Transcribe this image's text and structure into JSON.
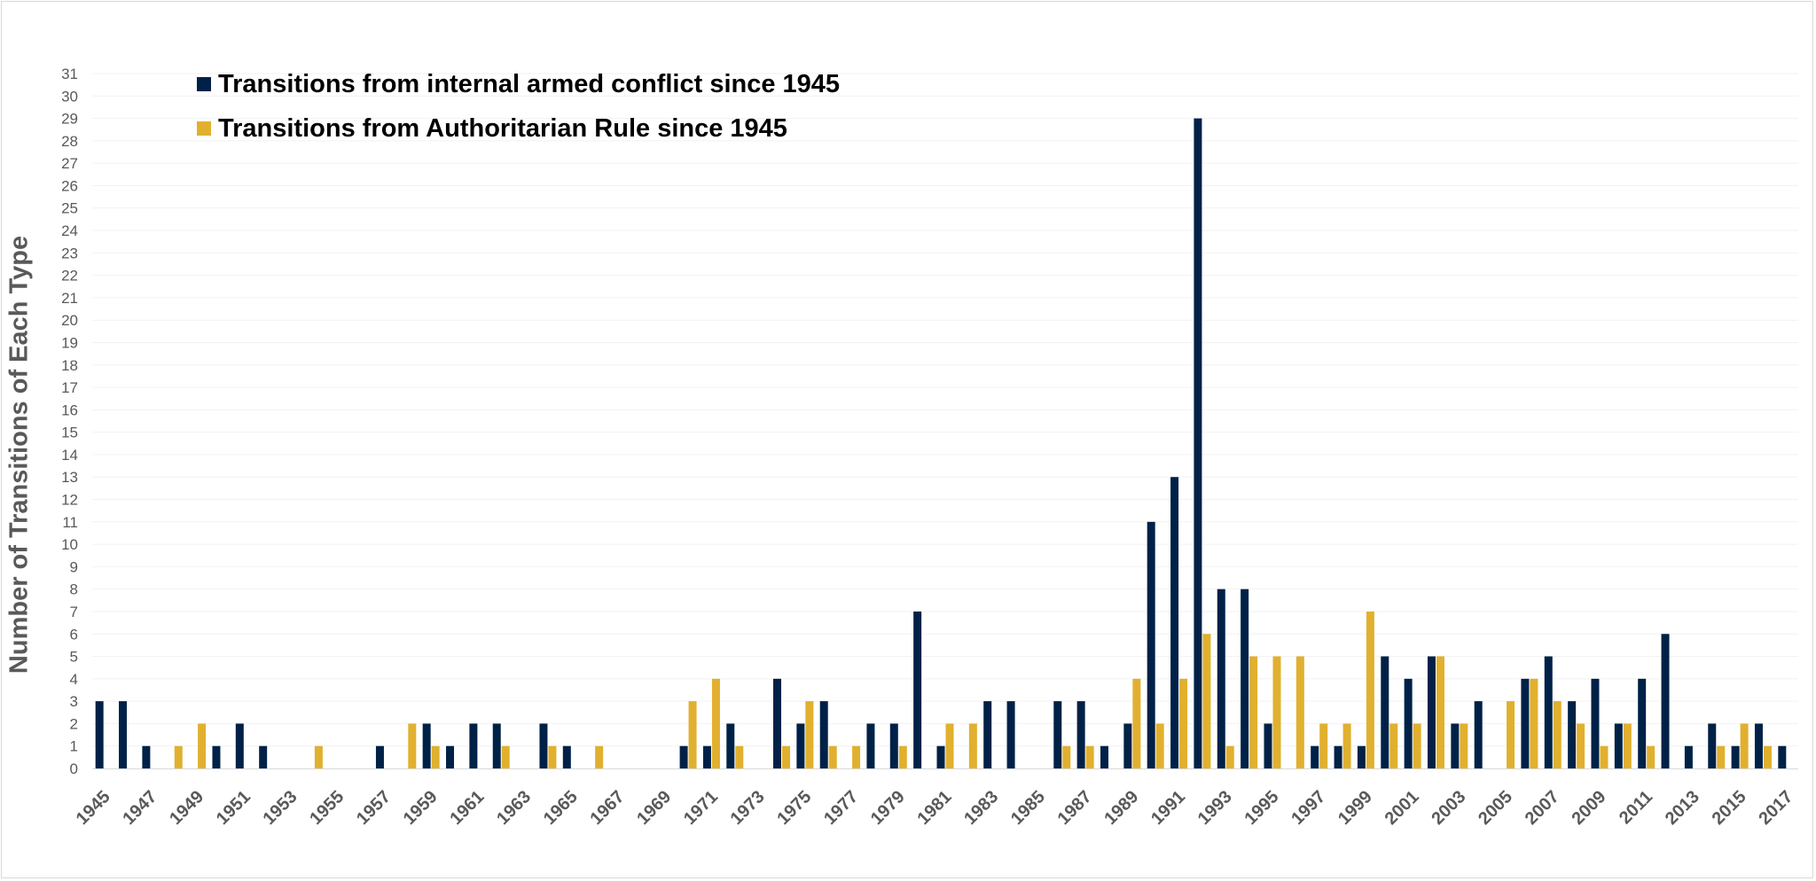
{
  "chart_data": {
    "type": "bar",
    "title": "",
    "xlabel": "",
    "ylabel": "Number of Transitions of Each Type",
    "ylim": [
      0,
      31
    ],
    "categories": [
      1945,
      1946,
      1947,
      1948,
      1949,
      1950,
      1951,
      1952,
      1953,
      1954,
      1955,
      1956,
      1957,
      1958,
      1959,
      1960,
      1961,
      1962,
      1963,
      1964,
      1965,
      1966,
      1967,
      1968,
      1969,
      1970,
      1971,
      1972,
      1973,
      1974,
      1975,
      1976,
      1977,
      1978,
      1979,
      1980,
      1981,
      1982,
      1983,
      1984,
      1985,
      1986,
      1987,
      1988,
      1989,
      1990,
      1991,
      1992,
      1993,
      1994,
      1995,
      1996,
      1997,
      1998,
      1999,
      2000,
      2001,
      2002,
      2003,
      2004,
      2005,
      2006,
      2007,
      2008,
      2009,
      2010,
      2011,
      2012,
      2013,
      2014,
      2015,
      2016,
      2017
    ],
    "x_tick_labels": [
      "1945",
      "1947",
      "1949",
      "1951",
      "1953",
      "1955",
      "1957",
      "1959",
      "1961",
      "1963",
      "1965",
      "1967",
      "1969",
      "1971",
      "1973",
      "1975",
      "1977",
      "1979",
      "1981",
      "1983",
      "1985",
      "1987",
      "1989",
      "1991",
      "1993",
      "1995",
      "1997",
      "1999",
      "2001",
      "2003",
      "2005",
      "2007",
      "2009",
      "2011",
      "2013",
      "2015",
      "2017"
    ],
    "y_ticks": [
      0,
      1,
      2,
      3,
      4,
      5,
      6,
      7,
      8,
      9,
      10,
      11,
      12,
      13,
      14,
      15,
      16,
      17,
      18,
      19,
      20,
      21,
      22,
      23,
      24,
      25,
      26,
      27,
      28,
      29,
      30,
      31
    ],
    "legend_position": "top-left",
    "series": [
      {
        "name": "Transitions from internal armed conflict since 1945",
        "color": "#002147",
        "values": [
          3,
          3,
          1,
          0,
          0,
          1,
          2,
          1,
          0,
          0,
          0,
          0,
          1,
          0,
          2,
          1,
          2,
          2,
          0,
          2,
          1,
          0,
          0,
          0,
          0,
          1,
          1,
          2,
          0,
          4,
          2,
          3,
          0,
          2,
          2,
          7,
          1,
          0,
          3,
          3,
          0,
          3,
          3,
          1,
          2,
          11,
          13,
          29,
          8,
          8,
          2,
          0,
          1,
          1,
          1,
          5,
          4,
          5,
          2,
          3,
          0,
          4,
          5,
          3,
          4,
          2,
          4,
          6,
          1,
          2,
          1,
          2,
          1
        ]
      },
      {
        "name": "Transitions from Authoritarian Rule since 1945",
        "color": "#E1B02E",
        "values": [
          0,
          0,
          0,
          1,
          2,
          0,
          0,
          0,
          0,
          1,
          0,
          0,
          0,
          2,
          1,
          0,
          0,
          1,
          0,
          1,
          0,
          1,
          0,
          0,
          0,
          3,
          4,
          1,
          0,
          1,
          3,
          1,
          1,
          0,
          1,
          0,
          2,
          2,
          0,
          0,
          0,
          1,
          1,
          0,
          4,
          2,
          4,
          6,
          1,
          5,
          5,
          5,
          2,
          2,
          7,
          2,
          2,
          5,
          2,
          0,
          3,
          4,
          3,
          2,
          1,
          2,
          1,
          0,
          0,
          1,
          2,
          1,
          0
        ]
      }
    ]
  }
}
